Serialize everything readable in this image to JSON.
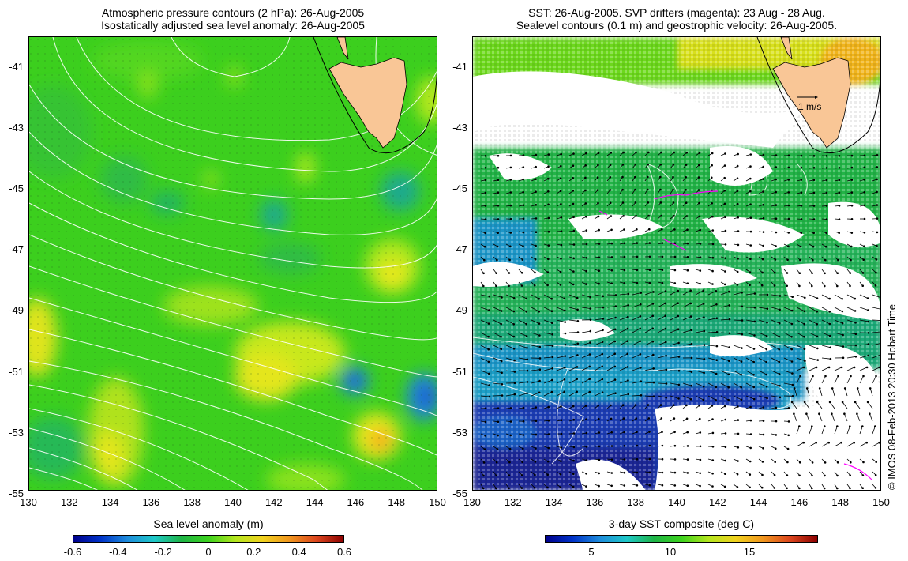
{
  "left_panel": {
    "title_line1": "Atmospheric pressure contours (2 hPa): 26-Aug-2005",
    "title_line2": "Isostatically adjusted sea level anomaly: 26-Aug-2005",
    "colorbar_label": "Sea level anomaly (m)",
    "colorbar_ticks": [
      "-0.6",
      "-0.4",
      "-0.2",
      "0",
      "0.2",
      "0.4",
      "0.6"
    ]
  },
  "right_panel": {
    "title_line1": "SST: 26-Aug-2005. SVP drifters (magenta): 23 Aug - 28 Aug.",
    "title_line2": "Sealevel contours (0.1 m) and geostrophic velocity: 26-Aug-2005.",
    "colorbar_label": "3-day SST composite (deg C)",
    "colorbar_ticks": [
      "5",
      "10",
      "15"
    ],
    "velocity_scale_label": "1 m/s"
  },
  "axes": {
    "lat_ticks": [
      "-41",
      "-43",
      "-45",
      "-47",
      "-49",
      "-51",
      "-53",
      "-55"
    ],
    "lon_ticks": [
      "130",
      "132",
      "134",
      "136",
      "138",
      "140",
      "142",
      "144",
      "146",
      "148",
      "150"
    ]
  },
  "credit": "© IMOS 08-Feb-2013 20:30 Hobart Time",
  "colors": {
    "land": "#f9c696",
    "sla_base": "#3cd21e",
    "sst_cold": "#1e3cb4",
    "sst_mid": "#1eb446",
    "drifter": "#ff00ff"
  }
}
